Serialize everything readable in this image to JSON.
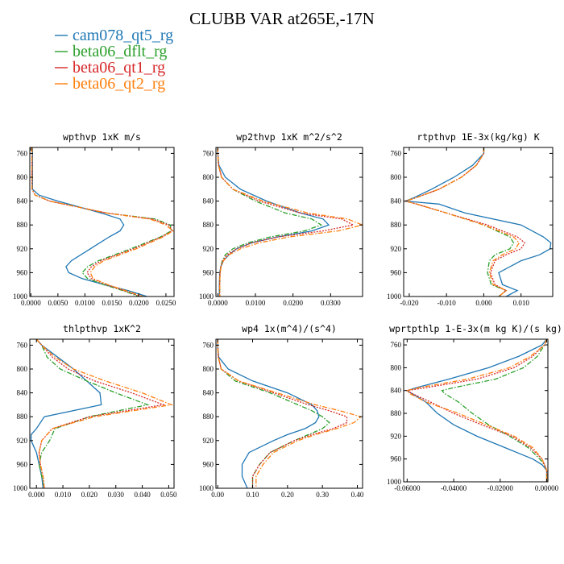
{
  "title": "CLUBB VAR at265E,-17N",
  "legend": [
    {
      "label": "cam078_qt5_rg",
      "color": "#1f77b4",
      "dash": "solid"
    },
    {
      "label": "beta06_dflt_rg",
      "color": "#2ca02c",
      "dash": "dashdot"
    },
    {
      "label": "beta06_qt1_rg",
      "color": "#d62728",
      "dash": "dotted"
    },
    {
      "label": "beta06_qt2_rg",
      "color": "#ff7f0e",
      "dash": "dashdot"
    }
  ],
  "chart_data": [
    {
      "type": "line",
      "title": "wpthvp  1xK m/s",
      "xlim": [
        -0.0002,
        0.0265
      ],
      "ylim": [
        1000,
        750
      ],
      "xticks": [
        0.0,
        0.005,
        0.01,
        0.015,
        0.02,
        0.025
      ],
      "xtick_labels": [
        "0.0000",
        "0.0050",
        "0.0100",
        "0.0150",
        "0.0200",
        "0.0250"
      ],
      "yticks": [
        760,
        800,
        840,
        880,
        920,
        960,
        1000
      ],
      "ytick_labels": [
        "760",
        "800",
        "840",
        "880",
        "920",
        "960",
        "1000"
      ],
      "y": [
        750,
        760,
        780,
        800,
        820,
        830,
        840,
        860,
        870,
        880,
        890,
        900,
        920,
        940,
        950,
        960,
        970,
        980,
        990,
        1000
      ],
      "series": [
        {
          "values": [
            0.0003,
            0.0003,
            0.0003,
            0.0003,
            0.0003,
            0.0015,
            0.005,
            0.013,
            0.0165,
            0.0172,
            0.0165,
            0.0145,
            0.011,
            0.0075,
            0.0065,
            0.007,
            0.0095,
            0.0135,
            0.018,
            0.0215
          ]
        },
        {
          "values": [
            0.0002,
            0.0002,
            0.0002,
            0.0002,
            0.0002,
            0.0008,
            0.0035,
            0.014,
            0.023,
            0.0258,
            0.026,
            0.024,
            0.0185,
            0.0125,
            0.0105,
            0.0095,
            0.0105,
            0.0135,
            0.017,
            0.02
          ]
        },
        {
          "values": [
            0.0002,
            0.0002,
            0.0002,
            0.0002,
            0.0002,
            0.0008,
            0.0035,
            0.014,
            0.0225,
            0.0255,
            0.0262,
            0.0242,
            0.019,
            0.013,
            0.0112,
            0.0104,
            0.0112,
            0.014,
            0.0172,
            0.0205
          ]
        },
        {
          "values": [
            0.0002,
            0.0002,
            0.0002,
            0.0002,
            0.0002,
            0.0008,
            0.0035,
            0.014,
            0.022,
            0.025,
            0.0263,
            0.0245,
            0.0195,
            0.0135,
            0.0118,
            0.011,
            0.0115,
            0.0142,
            0.0175,
            0.0208
          ]
        }
      ]
    },
    {
      "type": "line",
      "title": "wp2thvp  1xK m^2/s^2",
      "xlim": [
        -0.0005,
        0.0385
      ],
      "ylim": [
        1000,
        750
      ],
      "xticks": [
        0.0,
        0.01,
        0.02,
        0.03
      ],
      "xtick_labels": [
        "0.0000",
        "0.0100",
        "0.0200",
        "0.0300"
      ],
      "yticks": [
        760,
        800,
        840,
        880,
        920,
        960,
        1000
      ],
      "ytick_labels": [
        "760",
        "800",
        "840",
        "880",
        "920",
        "960",
        "1000"
      ],
      "y": [
        750,
        760,
        780,
        800,
        820,
        840,
        860,
        870,
        880,
        890,
        900,
        910,
        920,
        930,
        940,
        950,
        960,
        980,
        1000
      ],
      "series": [
        {
          "values": [
            0.0,
            0.0,
            0.0003,
            0.002,
            0.006,
            0.013,
            0.022,
            0.028,
            0.0295,
            0.025,
            0.016,
            0.009,
            0.005,
            0.003,
            0.0015,
            0.0008,
            0.0005,
            0.0004,
            0.0004
          ]
        },
        {
          "values": [
            0.0,
            0.0,
            0.0002,
            0.001,
            0.004,
            0.01,
            0.018,
            0.025,
            0.0275,
            0.023,
            0.014,
            0.008,
            0.004,
            0.002,
            0.0012,
            0.0008,
            0.0006,
            0.0005,
            0.0005
          ]
        },
        {
          "values": [
            0.0,
            0.0,
            0.0002,
            0.001,
            0.004,
            0.011,
            0.022,
            0.033,
            0.036,
            0.028,
            0.016,
            0.009,
            0.005,
            0.0025,
            0.0013,
            0.0008,
            0.0006,
            0.0005,
            0.0005
          ]
        },
        {
          "values": [
            0.0,
            0.0,
            0.0002,
            0.001,
            0.004,
            0.012,
            0.024,
            0.0345,
            0.0385,
            0.032,
            0.019,
            0.011,
            0.006,
            0.003,
            0.0015,
            0.0009,
            0.0006,
            0.0005,
            0.0005
          ]
        }
      ]
    },
    {
      "type": "line",
      "title": "rtpthvp  1E-3x(kg/kg) K",
      "xlim": [
        -0.0215,
        0.0185
      ],
      "ylim": [
        1000,
        750
      ],
      "xticks": [
        -0.02,
        -0.01,
        0.0,
        0.01
      ],
      "xtick_labels": [
        "-0.020",
        "-0.010",
        "0.000",
        "0.010"
      ],
      "yticks": [
        760,
        800,
        840,
        880,
        920,
        960,
        1000
      ],
      "ytick_labels": [
        "760",
        "800",
        "840",
        "880",
        "920",
        "960",
        "1000"
      ],
      "y": [
        750,
        760,
        780,
        800,
        820,
        835,
        840,
        845,
        860,
        880,
        900,
        910,
        920,
        930,
        940,
        960,
        980,
        990,
        1000
      ],
      "series": [
        {
          "values": [
            0.0,
            0.0,
            -0.003,
            -0.008,
            -0.014,
            -0.019,
            -0.021,
            -0.012,
            -0.005,
            0.01,
            0.016,
            0.018,
            0.0178,
            0.015,
            0.01,
            0.004,
            0.005,
            0.009,
            0.006
          ]
        },
        {
          "values": [
            0.0,
            0.0,
            -0.002,
            -0.006,
            -0.012,
            -0.0185,
            -0.021,
            -0.018,
            -0.01,
            0.0,
            0.007,
            0.008,
            0.007,
            0.003,
            0.0015,
            0.001,
            0.002,
            0.006,
            0.004
          ]
        },
        {
          "values": [
            0.0,
            0.0,
            -0.002,
            -0.006,
            -0.012,
            -0.0185,
            -0.021,
            -0.018,
            -0.01,
            0.001,
            0.009,
            0.011,
            0.01,
            0.006,
            0.003,
            0.0018,
            0.003,
            0.006,
            0.004
          ]
        },
        {
          "values": [
            0.0,
            0.0,
            -0.002,
            -0.006,
            -0.012,
            -0.0185,
            -0.021,
            -0.018,
            -0.01,
            0.0,
            0.008,
            0.0095,
            0.0085,
            0.005,
            0.0025,
            0.0015,
            0.0025,
            0.006,
            0.004
          ]
        }
      ]
    },
    {
      "type": "line",
      "title": "thlpthvp  1xK^2",
      "xlim": [
        -0.0025,
        0.052
      ],
      "ylim": [
        1000,
        750
      ],
      "xticks": [
        0.0,
        0.01,
        0.02,
        0.03,
        0.04,
        0.05
      ],
      "xtick_labels": [
        "0.000",
        "0.010",
        "0.020",
        "0.030",
        "0.040",
        "0.050"
      ],
      "yticks": [
        760,
        800,
        840,
        880,
        920,
        960,
        1000
      ],
      "ytick_labels": [
        "760",
        "800",
        "840",
        "880",
        "920",
        "960",
        "1000"
      ],
      "y": [
        750,
        760,
        780,
        800,
        820,
        840,
        860,
        880,
        900,
        910,
        920,
        940,
        960,
        980,
        1000
      ],
      "series": [
        {
          "values": [
            0.0,
            0.002,
            0.008,
            0.014,
            0.019,
            0.024,
            0.0245,
            0.003,
            0.0,
            -0.002,
            -0.002,
            0.0,
            0.001,
            0.002,
            0.0025
          ]
        },
        {
          "values": [
            0.0,
            0.002,
            0.004,
            0.009,
            0.019,
            0.03,
            0.042,
            0.02,
            0.007,
            0.006,
            0.005,
            0.002,
            0.001,
            0.002,
            0.003
          ]
        },
        {
          "values": [
            0.0,
            0.002,
            0.006,
            0.012,
            0.022,
            0.036,
            0.048,
            0.02,
            0.006,
            0.004,
            0.002,
            0.001,
            0.0015,
            0.0025,
            0.003
          ]
        },
        {
          "values": [
            0.0,
            0.002,
            0.007,
            0.014,
            0.026,
            0.04,
            0.051,
            0.022,
            0.006,
            0.004,
            0.002,
            0.001,
            0.0015,
            0.0025,
            0.003
          ]
        }
      ]
    },
    {
      "type": "line",
      "title": "wp4  1x(m^4)/(s^4)",
      "xlim": [
        -0.005,
        0.415
      ],
      "ylim": [
        1000,
        750
      ],
      "xticks": [
        0.0,
        0.1,
        0.2,
        0.3,
        0.4
      ],
      "xtick_labels": [
        "0.00",
        "0.10",
        "0.20",
        "0.30",
        "0.40"
      ],
      "yticks": [
        760,
        800,
        840,
        880,
        920,
        960,
        1000
      ],
      "ytick_labels": [
        "760",
        "800",
        "840",
        "880",
        "920",
        "960",
        "1000"
      ],
      "y": [
        750,
        760,
        780,
        800,
        820,
        840,
        860,
        870,
        880,
        890,
        900,
        910,
        920,
        940,
        960,
        980,
        1000
      ],
      "series": [
        {
          "values": [
            0.0,
            0.0,
            0.003,
            0.03,
            0.1,
            0.2,
            0.27,
            0.285,
            0.29,
            0.28,
            0.25,
            0.2,
            0.16,
            0.09,
            0.07,
            0.07,
            0.085
          ]
        },
        {
          "values": [
            0.0,
            0.0,
            0.002,
            0.01,
            0.05,
            0.15,
            0.23,
            0.27,
            0.3,
            0.32,
            0.3,
            0.26,
            0.22,
            0.15,
            0.12,
            0.1,
            0.1
          ]
        },
        {
          "values": [
            0.0,
            0.0,
            0.002,
            0.01,
            0.06,
            0.16,
            0.26,
            0.32,
            0.37,
            0.37,
            0.33,
            0.27,
            0.22,
            0.15,
            0.12,
            0.1,
            0.1
          ]
        },
        {
          "values": [
            0.0,
            0.0,
            0.002,
            0.01,
            0.06,
            0.17,
            0.28,
            0.35,
            0.41,
            0.39,
            0.34,
            0.28,
            0.23,
            0.16,
            0.13,
            0.11,
            0.11
          ]
        }
      ]
    },
    {
      "type": "line",
      "title": "wprtpthlp  1-E-3x(m kg K)/(s kg)",
      "xlim": [
        -0.0615,
        0.0005
      ],
      "ylim": [
        1000,
        750
      ],
      "xticks": [
        -0.06,
        -0.04,
        -0.02,
        0.0
      ],
      "xtick_labels": [
        "-0.06000",
        "-0.04000",
        "-0.02000",
        "0.00000"
      ],
      "yticks": [
        760,
        800,
        840,
        880,
        920,
        960,
        1000
      ],
      "ytick_labels": [
        "760",
        "800",
        "840",
        "880",
        "920",
        "960",
        "1000"
      ],
      "y": [
        750,
        760,
        780,
        800,
        820,
        835,
        840,
        845,
        860,
        880,
        900,
        920,
        940,
        960,
        970,
        980,
        990,
        1000
      ],
      "series": [
        {
          "values": [
            0.0,
            -0.002,
            -0.012,
            -0.025,
            -0.042,
            -0.056,
            -0.06,
            -0.058,
            -0.052,
            -0.047,
            -0.04,
            -0.03,
            -0.018,
            -0.006,
            -0.002,
            0.0,
            0.0,
            0.0
          ]
        },
        {
          "values": [
            0.0,
            -0.001,
            -0.004,
            -0.01,
            -0.022,
            -0.04,
            -0.045,
            -0.044,
            -0.038,
            -0.032,
            -0.025,
            -0.016,
            -0.008,
            -0.003,
            -0.001,
            0.0,
            0.0,
            0.0
          ]
        },
        {
          "values": [
            0.0,
            -0.001,
            -0.006,
            -0.014,
            -0.03,
            -0.052,
            -0.06,
            -0.058,
            -0.05,
            -0.04,
            -0.028,
            -0.015,
            -0.007,
            -0.002,
            -0.001,
            0.0,
            0.0,
            0.0
          ]
        },
        {
          "values": [
            0.0,
            -0.001,
            -0.007,
            -0.016,
            -0.034,
            -0.055,
            -0.06,
            -0.059,
            -0.052,
            -0.038,
            -0.026,
            -0.014,
            -0.006,
            -0.002,
            -0.001,
            0.0,
            0.0,
            0.0
          ]
        }
      ]
    }
  ]
}
